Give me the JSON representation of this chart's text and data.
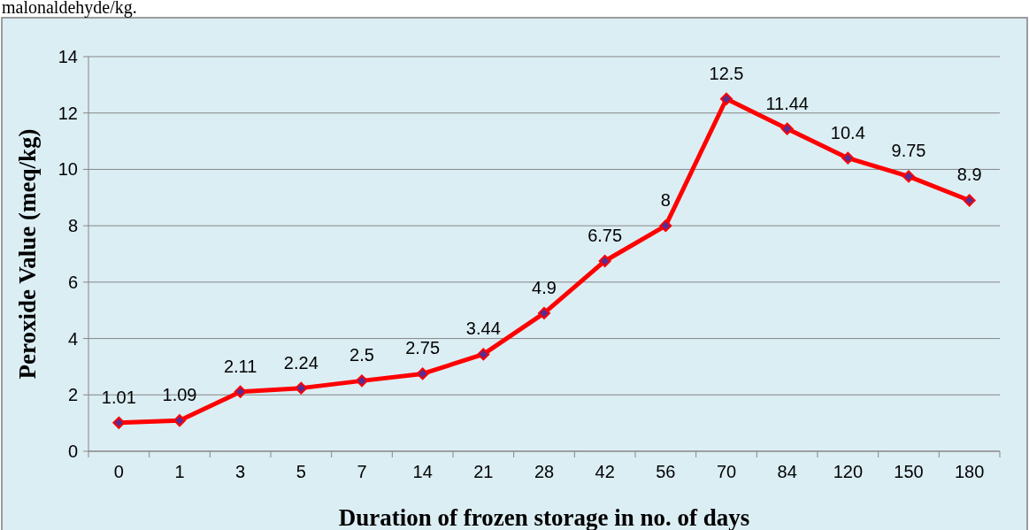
{
  "chart_data": {
    "type": "line",
    "xlabel": "Duration of  frozen storage in no. of days",
    "ylabel": "Peroxide Value (meq/kg)",
    "annotations": [
      "malonaldehyde/kg."
    ],
    "categories": [
      "0",
      "1",
      "3",
      "5",
      "7",
      "14",
      "21",
      "28",
      "42",
      "56",
      "70",
      "84",
      "120",
      "150",
      "180"
    ],
    "series": [
      {
        "color": "#ff0000",
        "values": [
          1.01,
          1.09,
          2.11,
          2.24,
          2.5,
          2.75,
          3.44,
          4.9,
          6.75,
          8,
          12.5,
          11.44,
          10.4,
          9.75,
          8.9
        ]
      }
    ],
    "ylim": [
      0,
      14
    ],
    "yticks": [
      0,
      2,
      4,
      6,
      8,
      10,
      12,
      14
    ],
    "grid": "y",
    "marker": "diamond",
    "line_style": "solid",
    "data_labels": true
  }
}
